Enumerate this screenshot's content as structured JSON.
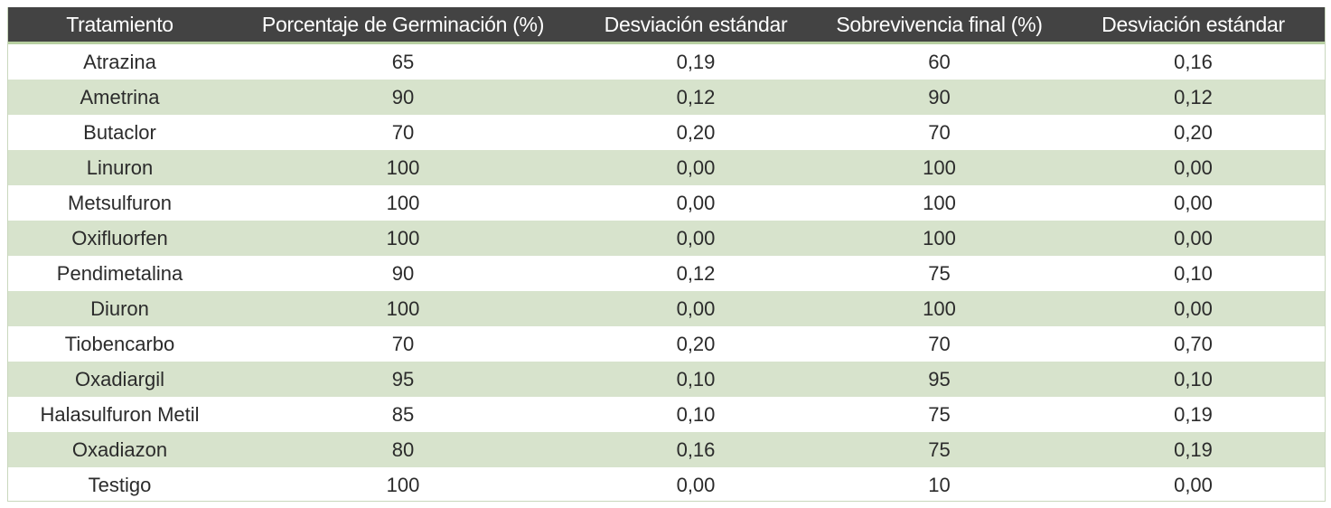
{
  "table": {
    "headers": [
      "Tratamiento",
      "Porcentaje de Germinación (%)",
      "Desviación estándar",
      "Sobrevivencia final (%)",
      "Desviación estándar"
    ],
    "rows": [
      [
        "Atrazina",
        "65",
        "0,19",
        "60",
        "0,16"
      ],
      [
        "Ametrina",
        "90",
        "0,12",
        "90",
        "0,12"
      ],
      [
        "Butaclor",
        "70",
        "0,20",
        "70",
        "0,20"
      ],
      [
        "Linuron",
        "100",
        "0,00",
        "100",
        "0,00"
      ],
      [
        "Metsulfuron",
        "100",
        "0,00",
        "100",
        "0,00"
      ],
      [
        "Oxifluorfen",
        "100",
        "0,00",
        "100",
        "0,00"
      ],
      [
        "Pendimetalina",
        "90",
        "0,12",
        "75",
        "0,10"
      ],
      [
        "Diuron",
        "100",
        "0,00",
        "100",
        "0,00"
      ],
      [
        "Tiobencarbo",
        "70",
        "0,20",
        "70",
        "0,70"
      ],
      [
        "Oxadiargil",
        "95",
        "0,10",
        "95",
        "0,10"
      ],
      [
        "Halasulfuron Metil",
        "85",
        "0,10",
        "75",
        "0,19"
      ],
      [
        "Oxadiazon",
        "80",
        "0,16",
        "75",
        "0,19"
      ],
      [
        "Testigo",
        "100",
        "0,00",
        "10",
        "0,00"
      ]
    ]
  },
  "colors": {
    "header_bg": "#434343",
    "header_text": "#ffffff",
    "stripe": "#d7e3cc",
    "accent_line": "#b7cfa1"
  }
}
